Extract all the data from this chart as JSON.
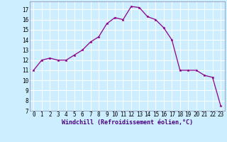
{
  "x_vals": [
    0,
    1,
    2,
    3,
    4,
    5,
    6,
    7,
    8,
    9,
    10,
    11,
    12,
    13,
    14,
    15,
    16,
    17,
    18,
    19,
    20,
    21,
    22,
    23
  ],
  "y_vals": [
    11,
    12,
    12.2,
    12,
    12,
    12.5,
    13,
    13.8,
    14.3,
    15.6,
    16.2,
    16,
    17.3,
    17.2,
    16.3,
    16,
    15.2,
    14,
    11,
    11,
    11,
    10.5,
    10.3,
    7.5
  ],
  "line_color": "#8B008B",
  "marker_color": "#8B008B",
  "bg_color": "#cceeff",
  "grid_color": "#ffffff",
  "xlabel": "Windchill (Refroidissement éolien,°C)",
  "xlim": [
    -0.5,
    23.5
  ],
  "ylim": [
    7,
    17.8
  ],
  "yticks": [
    7,
    8,
    9,
    10,
    11,
    12,
    13,
    14,
    15,
    16,
    17
  ],
  "xticks": [
    0,
    1,
    2,
    3,
    4,
    5,
    6,
    7,
    8,
    9,
    10,
    11,
    12,
    13,
    14,
    15,
    16,
    17,
    18,
    19,
    20,
    21,
    22,
    23
  ],
  "line_width": 0.9,
  "marker_size": 2.5,
  "tick_fontsize": 5.5,
  "xlabel_fontsize": 6.0
}
